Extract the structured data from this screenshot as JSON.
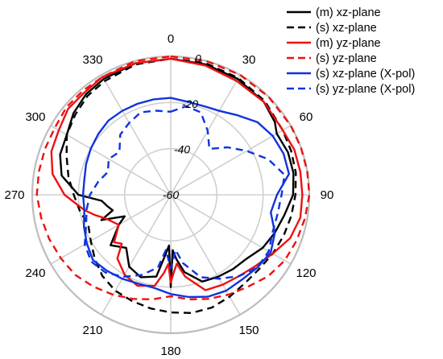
{
  "chart_data": {
    "type": "polar",
    "title": "",
    "r_unit": "dB",
    "r_range": [
      -60,
      0
    ],
    "radial_ticks": [
      -60,
      -40,
      -20,
      0
    ],
    "radial_tick_labels": [
      "-60",
      "-40",
      "-20",
      "0"
    ],
    "angle_ticks": [
      0,
      30,
      60,
      90,
      120,
      150,
      180,
      210,
      240,
      270,
      300,
      330
    ],
    "angle_tick_labels": [
      "0",
      "30",
      "60",
      "90",
      "120",
      "150",
      "180",
      "210",
      "240",
      "270",
      "300",
      "330"
    ],
    "angle_direction": "clockwise",
    "zero_angle_position": "top",
    "grid": true,
    "legend_position": "top-right",
    "series": [
      {
        "name": "(m) xz-plane",
        "color": "#000000",
        "dash": "solid",
        "theta": [
          0,
          15,
          30,
          45,
          55,
          60,
          70,
          80,
          90,
          100,
          110,
          120,
          130,
          140,
          150,
          160,
          170,
          175,
          178,
          180,
          182,
          185,
          190,
          200,
          210,
          220,
          230,
          240,
          245,
          250,
          255,
          260,
          265,
          270,
          280,
          290,
          300,
          310,
          320,
          330,
          345
        ],
        "r": [
          -1,
          -1.5,
          -2,
          -3,
          -5,
          -7,
          -6,
          -6,
          -7,
          -10,
          -12,
          -14,
          -17,
          -18,
          -19,
          -20,
          -26,
          -32,
          -36,
          -20,
          -38,
          -34,
          -24,
          -22,
          -24,
          -30,
          -26,
          -34,
          -38,
          -28,
          -34,
          -32,
          -30,
          -20,
          -12,
          -9,
          -8,
          -5,
          -3,
          -2,
          -1
        ]
      },
      {
        "name": "(s) xz-plane",
        "color": "#000000",
        "dash": "dashed",
        "theta": [
          0,
          15,
          30,
          45,
          60,
          70,
          80,
          90,
          100,
          110,
          120,
          130,
          140,
          150,
          160,
          170,
          180,
          190,
          200,
          210,
          220,
          230,
          240,
          250,
          260,
          270,
          280,
          290,
          300,
          310,
          320,
          330,
          345
        ],
        "r": [
          -1,
          -1,
          -1.5,
          -2.5,
          -4,
          -4.5,
          -5,
          -6,
          -7,
          -8,
          -9,
          -10,
          -10,
          -9,
          -8,
          -8,
          -9,
          -10,
          -11,
          -12,
          -14,
          -17,
          -20,
          -22,
          -20,
          -18,
          -15,
          -12,
          -8,
          -6,
          -4,
          -3,
          -1.5
        ]
      },
      {
        "name": "(m) yz-plane",
        "color": "#ee1111",
        "dash": "solid",
        "theta": [
          0,
          15,
          30,
          45,
          60,
          70,
          80,
          90,
          100,
          110,
          120,
          130,
          140,
          150,
          160,
          170,
          175,
          178,
          180,
          182,
          185,
          190,
          200,
          210,
          220,
          225,
          230,
          240,
          250,
          255,
          260,
          270,
          280,
          290,
          300,
          310,
          320,
          330,
          345
        ],
        "r": [
          -1,
          -2,
          -3,
          -3,
          -4,
          -3,
          -3,
          -3,
          -3,
          -5,
          -9,
          -12,
          -14,
          -15,
          -16,
          -24,
          -30,
          -26,
          -22,
          -30,
          -26,
          -20,
          -18,
          -20,
          -24,
          -30,
          -28,
          -34,
          -30,
          -26,
          -22,
          -14,
          -8,
          -5,
          -4,
          -2,
          -2,
          -1,
          -1
        ]
      },
      {
        "name": "(s) yz-plane",
        "color": "#ee1111",
        "dash": "dashed",
        "theta": [
          0,
          15,
          30,
          45,
          60,
          70,
          80,
          90,
          100,
          110,
          120,
          130,
          140,
          150,
          160,
          170,
          180,
          190,
          200,
          210,
          220,
          230,
          240,
          250,
          260,
          270,
          280,
          290,
          300,
          310,
          320,
          330,
          345
        ],
        "r": [
          0,
          0,
          0,
          0,
          0,
          0,
          0,
          0,
          -1,
          -2,
          -3,
          -5,
          -8,
          -10,
          -12,
          -14,
          -16,
          -14,
          -12,
          -10,
          -8,
          -6,
          -5,
          -4,
          -3,
          -2,
          -2,
          -2,
          -2,
          -1,
          -1,
          -1,
          0
        ]
      },
      {
        "name": "(s) xz-plane (X-pol)",
        "color": "#1133dd",
        "dash": "solid",
        "theta": [
          0,
          10,
          20,
          30,
          40,
          50,
          60,
          70,
          80,
          90,
          100,
          110,
          120,
          130,
          140,
          150,
          160,
          170,
          180,
          190,
          200,
          210,
          220,
          230,
          240,
          250,
          260,
          270,
          280,
          290,
          300,
          310,
          320,
          330,
          340,
          350
        ],
        "r": [
          -18,
          -19,
          -19,
          -18,
          -15,
          -11,
          -9,
          -8,
          -8,
          -14,
          -16,
          -12,
          -10,
          -11,
          -12,
          -12,
          -13,
          -15,
          -17,
          -19,
          -19,
          -18,
          -17,
          -16,
          -18,
          -20,
          -22,
          -22,
          -22,
          -21,
          -20,
          -19,
          -18,
          -18,
          -18,
          -18
        ]
      },
      {
        "name": "(s) yz-plane (X-pol)",
        "color": "#1133dd",
        "dash": "dashed",
        "theta": [
          0,
          10,
          20,
          30,
          40,
          50,
          60,
          70,
          80,
          90,
          100,
          110,
          120,
          130,
          140,
          150,
          160,
          170,
          175,
          180,
          185,
          190,
          200,
          210,
          220,
          230,
          240,
          250,
          260,
          270,
          280,
          290,
          300,
          310,
          320,
          330,
          340,
          350
        ],
        "r": [
          -24,
          -21,
          -22,
          -28,
          -34,
          -28,
          -22,
          -15,
          -10,
          -12,
          -13,
          -13,
          -11,
          -11,
          -14,
          -18,
          -22,
          -30,
          -36,
          -28,
          -36,
          -28,
          -23,
          -19,
          -16,
          -15,
          -17,
          -21,
          -23,
          -25,
          -28,
          -31,
          -29,
          -31,
          -26,
          -24,
          -22,
          -23
        ]
      }
    ]
  }
}
